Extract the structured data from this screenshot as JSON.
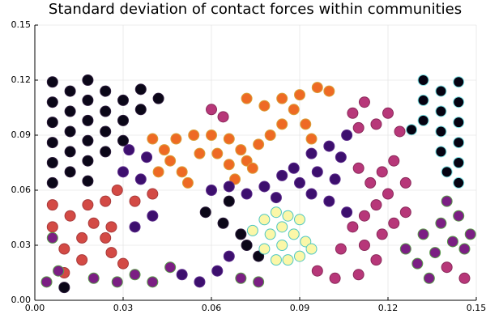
{
  "chart_data": {
    "type": "scatter",
    "title": "Standard deviation of contact forces within communities",
    "xlim": [
      0,
      0.15
    ],
    "ylim": [
      0,
      0.15
    ],
    "xticks": [
      {
        "value": 0,
        "label": "0.00"
      },
      0.03,
      0.06,
      0.09,
      0.12,
      0.15
    ],
    "yticks": [
      {
        "value": 0,
        "label": "0.00"
      },
      0.03,
      0.06,
      0.09,
      0.12,
      0.15
    ],
    "grid": true,
    "series": [
      {
        "color": "#0b0718",
        "edgecolor": "#2a1a3a",
        "x": [
          0.006,
          0.006,
          0.006,
          0.006,
          0.006,
          0.006,
          0.012,
          0.012,
          0.012,
          0.012,
          0.012,
          0.018,
          0.018,
          0.018,
          0.018,
          0.018,
          0.018,
          0.024,
          0.024,
          0.024,
          0.024,
          0.03,
          0.03,
          0.03,
          0.036,
          0.036,
          0.042,
          0.058,
          0.064,
          0.066,
          0.07,
          0.072,
          0.076,
          0.01
        ],
        "y": [
          0.064,
          0.075,
          0.086,
          0.097,
          0.108,
          0.119,
          0.07,
          0.081,
          0.092,
          0.103,
          0.114,
          0.065,
          0.076,
          0.087,
          0.098,
          0.109,
          0.12,
          0.081,
          0.092,
          0.103,
          0.114,
          0.087,
          0.098,
          0.109,
          0.104,
          0.115,
          0.11,
          0.048,
          0.042,
          0.054,
          0.036,
          0.03,
          0.024,
          0.007
        ]
      },
      {
        "color": "#050312",
        "edgecolor": "#7fe3e6",
        "x": [
          0.132,
          0.132,
          0.132,
          0.138,
          0.138,
          0.138,
          0.138,
          0.144,
          0.144,
          0.144,
          0.144,
          0.144,
          0.144,
          0.128,
          0.14
        ],
        "y": [
          0.12,
          0.109,
          0.098,
          0.114,
          0.103,
          0.092,
          0.081,
          0.119,
          0.108,
          0.097,
          0.086,
          0.075,
          0.064,
          0.093,
          0.07
        ]
      },
      {
        "color": "#ee6a24",
        "edgecolor": "#d9a03a",
        "x": [
          0.044,
          0.048,
          0.054,
          0.06,
          0.066,
          0.07,
          0.046,
          0.05,
          0.052,
          0.056,
          0.062,
          0.066,
          0.068,
          0.04,
          0.042,
          0.072,
          0.074,
          0.076,
          0.08,
          0.084,
          0.078,
          0.084,
          0.088,
          0.09,
          0.092,
          0.096,
          0.1,
          0.094,
          0.072
        ],
        "y": [
          0.082,
          0.088,
          0.09,
          0.09,
          0.088,
          0.082,
          0.076,
          0.07,
          0.064,
          0.08,
          0.08,
          0.074,
          0.066,
          0.088,
          0.07,
          0.076,
          0.072,
          0.085,
          0.09,
          0.096,
          0.106,
          0.11,
          0.104,
          0.112,
          0.096,
          0.116,
          0.114,
          0.088,
          0.11
        ]
      },
      {
        "color": "#d34a45",
        "edgecolor": "#a83a3a",
        "x": [
          0.006,
          0.012,
          0.018,
          0.024,
          0.01,
          0.016,
          0.016,
          0.01,
          0.006,
          0.02,
          0.026,
          0.028,
          0.034,
          0.04,
          0.03,
          0.026,
          0.024
        ],
        "y": [
          0.04,
          0.046,
          0.052,
          0.054,
          0.028,
          0.034,
          0.022,
          0.015,
          0.052,
          0.042,
          0.04,
          0.06,
          0.054,
          0.058,
          0.02,
          0.026,
          0.034
        ]
      },
      {
        "color": "#3d0f6e",
        "edgecolor": "#5a2a8a",
        "x": [
          0.06,
          0.066,
          0.072,
          0.078,
          0.084,
          0.09,
          0.096,
          0.102,
          0.094,
          0.1,
          0.104,
          0.106,
          0.088,
          0.082,
          0.094,
          0.1,
          0.106,
          0.062,
          0.056,
          0.05,
          0.066,
          0.034,
          0.04,
          0.03,
          0.036,
          0.032,
          0.038
        ],
        "y": [
          0.06,
          0.062,
          0.058,
          0.062,
          0.068,
          0.064,
          0.07,
          0.066,
          0.08,
          0.084,
          0.078,
          0.09,
          0.072,
          0.056,
          0.058,
          0.054,
          0.048,
          0.016,
          0.01,
          0.014,
          0.024,
          0.04,
          0.046,
          0.07,
          0.066,
          0.082,
          0.078
        ]
      },
      {
        "color": "#fbf7a8",
        "edgecolor": "#4fc7c0",
        "x": [
          0.078,
          0.082,
          0.086,
          0.09,
          0.08,
          0.084,
          0.088,
          0.092,
          0.078,
          0.084,
          0.09,
          0.094,
          0.086,
          0.082,
          0.074
        ],
        "y": [
          0.044,
          0.048,
          0.046,
          0.044,
          0.036,
          0.04,
          0.036,
          0.032,
          0.028,
          0.03,
          0.024,
          0.028,
          0.022,
          0.022,
          0.038
        ]
      },
      {
        "color": "#b73779",
        "edgecolor": "#8a2a5a",
        "x": [
          0.108,
          0.112,
          0.116,
          0.12,
          0.114,
          0.118,
          0.122,
          0.126,
          0.11,
          0.112,
          0.118,
          0.122,
          0.126,
          0.116,
          0.104,
          0.11,
          0.102,
          0.096,
          0.108,
          0.112,
          0.116,
          0.12,
          0.124,
          0.11,
          0.06,
          0.064,
          0.146,
          0.14
        ],
        "y": [
          0.04,
          0.046,
          0.052,
          0.058,
          0.064,
          0.07,
          0.076,
          0.064,
          0.072,
          0.03,
          0.036,
          0.042,
          0.048,
          0.022,
          0.028,
          0.014,
          0.012,
          0.016,
          0.102,
          0.108,
          0.096,
          0.102,
          0.092,
          0.094,
          0.104,
          0.1,
          0.012,
          0.018
        ]
      },
      {
        "color": "#7b1f83",
        "edgecolor": "#5a9a4a",
        "x": [
          0.004,
          0.008,
          0.02,
          0.028,
          0.034,
          0.04,
          0.046,
          0.006,
          0.13,
          0.134,
          0.126,
          0.136,
          0.132,
          0.138,
          0.142,
          0.146,
          0.14,
          0.144,
          0.148,
          0.07,
          0.076
        ],
        "y": [
          0.01,
          0.016,
          0.012,
          0.01,
          0.014,
          0.01,
          0.018,
          0.034,
          0.02,
          0.012,
          0.028,
          0.026,
          0.036,
          0.042,
          0.032,
          0.028,
          0.054,
          0.046,
          0.036,
          0.012,
          0.01
        ]
      }
    ]
  }
}
